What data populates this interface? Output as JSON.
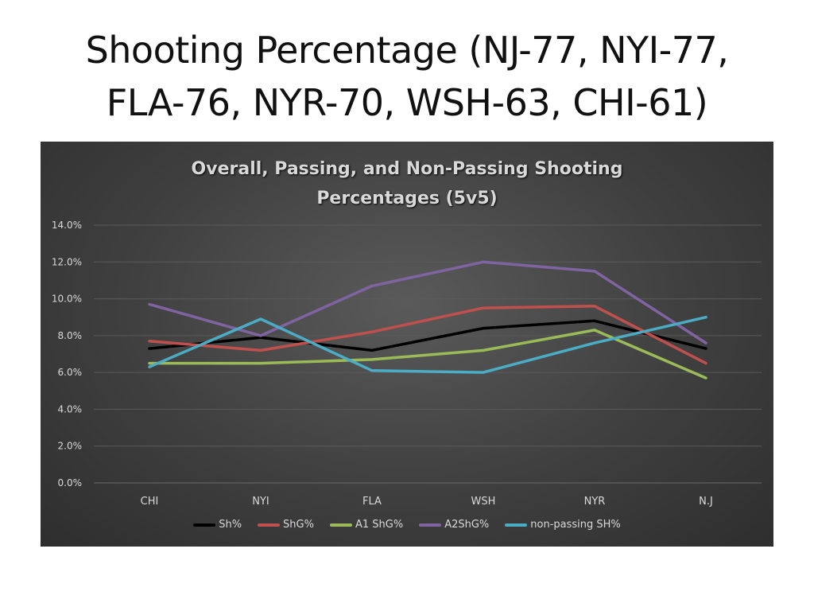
{
  "slide": {
    "title_line1": "Shooting Percentage (NJ-77, NYI-77,",
    "title_line2": "FLA-76, NYR-70, WSH-63, CHI-61)"
  },
  "chart_data": {
    "type": "line",
    "title_line1": "Overall, Passing, and Non-Passing Shooting",
    "title_line2": "Percentages (5v5)",
    "xlabel": "",
    "ylabel": "",
    "categories": [
      "CHI",
      "NYI",
      "FLA",
      "WSH",
      "NYR",
      "N.J"
    ],
    "ylim": [
      0,
      0.14
    ],
    "yticks": [
      "0.0%",
      "2.0%",
      "4.0%",
      "6.0%",
      "8.0%",
      "10.0%",
      "12.0%",
      "14.0%"
    ],
    "grid": true,
    "legend_position": "bottom",
    "series": [
      {
        "name": "Sh%",
        "color": "#000000",
        "values": [
          0.073,
          0.079,
          0.072,
          0.084,
          0.088,
          0.073
        ]
      },
      {
        "name": "ShG%",
        "color": "#c0504d",
        "values": [
          0.077,
          0.072,
          0.082,
          0.095,
          0.096,
          0.065
        ]
      },
      {
        "name": "A1 ShG%",
        "color": "#9bbb59",
        "values": [
          0.065,
          0.065,
          0.067,
          0.072,
          0.083,
          0.057
        ]
      },
      {
        "name": "A2ShG%",
        "color": "#8064a2",
        "values": [
          0.097,
          0.08,
          0.107,
          0.12,
          0.115,
          0.076
        ]
      },
      {
        "name": "non-passing SH%",
        "color": "#4bacc6",
        "values": [
          0.063,
          0.089,
          0.061,
          0.06,
          0.076,
          0.09
        ]
      }
    ]
  }
}
